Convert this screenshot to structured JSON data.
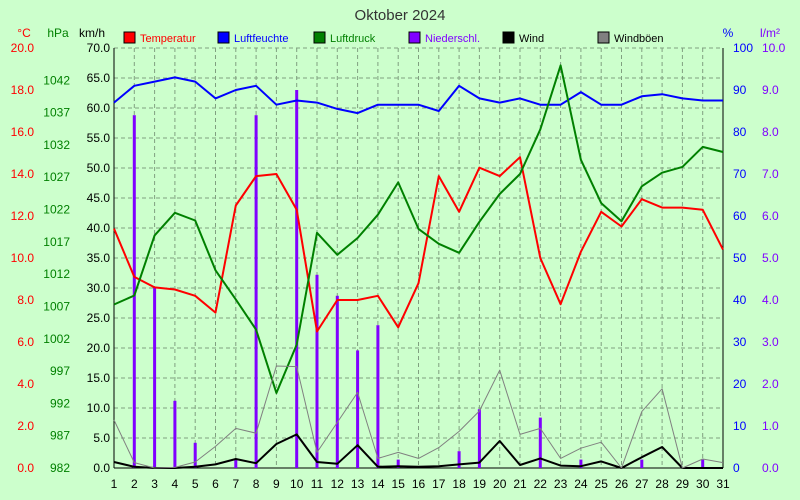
{
  "chart_data": {
    "type": "line",
    "title": "Oktober 2024",
    "x": [
      1,
      2,
      3,
      4,
      5,
      6,
      7,
      8,
      9,
      10,
      11,
      12,
      13,
      14,
      15,
      16,
      17,
      18,
      19,
      20,
      21,
      22,
      23,
      24,
      25,
      26,
      27,
      28,
      29,
      30,
      31
    ],
    "axis_headers": {
      "temp": "°C",
      "pressure": "hPa",
      "wind": "km/h",
      "humidity": "%",
      "rain": "l/m²"
    },
    "axes": {
      "temp": {
        "min": 0,
        "max": 20,
        "ticks": [
          "0.0",
          "2.0",
          "4.0",
          "6.0",
          "8.0",
          "10.0",
          "12.0",
          "14.0",
          "16.0",
          "18.0",
          "20.0"
        ],
        "color": "#ff0000"
      },
      "pressure": {
        "min": 982,
        "max": 1047,
        "ticks": [
          "982",
          "987",
          "992",
          "997",
          "1002",
          "1007",
          "1012",
          "1017",
          "1022",
          "1027",
          "1032",
          "1037",
          "1042"
        ],
        "color": "#008000"
      },
      "wind": {
        "min": 0,
        "max": 70,
        "ticks": [
          "0.0",
          "5.0",
          "10.0",
          "15.0",
          "20.0",
          "25.0",
          "30.0",
          "35.0",
          "40.0",
          "45.0",
          "50.0",
          "55.0",
          "60.0",
          "65.0",
          "70.0"
        ],
        "color": "#000000"
      },
      "humidity": {
        "min": 0,
        "max": 100,
        "ticks": [
          "0",
          "10",
          "20",
          "30",
          "40",
          "50",
          "60",
          "70",
          "80",
          "90",
          "100"
        ],
        "color": "#0000ff"
      },
      "rain": {
        "min": 0,
        "max": 10,
        "ticks": [
          "0.0",
          "1.0",
          "2.0",
          "3.0",
          "4.0",
          "5.0",
          "6.0",
          "7.0",
          "8.0",
          "9.0",
          "10.0"
        ],
        "color": "#8000ff"
      }
    },
    "xticks": [
      "1",
      "2",
      "3",
      "4",
      "5",
      "6",
      "7",
      "8",
      "9",
      "10",
      "11",
      "12",
      "13",
      "14",
      "15",
      "16",
      "17",
      "18",
      "19",
      "20",
      "21",
      "22",
      "23",
      "24",
      "25",
      "26",
      "27",
      "28",
      "29",
      "30",
      "31"
    ],
    "legend_position": "top",
    "grid": true,
    "series": [
      {
        "name": "Temperatur",
        "axis": "temp",
        "color": "#ff0000",
        "kind": "line",
        "values": [
          11.4,
          9.1,
          8.6,
          8.5,
          8.2,
          7.4,
          12.5,
          13.9,
          14.0,
          12.3,
          6.5,
          8.0,
          8.0,
          8.2,
          6.7,
          8.8,
          13.9,
          12.2,
          14.3,
          13.9,
          14.8,
          10.0,
          7.8,
          10.3,
          12.2,
          11.5,
          12.8,
          12.4,
          12.4,
          12.3,
          10.4
        ]
      },
      {
        "name": "Luftfeuchte",
        "axis": "humidity",
        "color": "#0000ff",
        "kind": "line",
        "values": [
          87,
          91,
          92,
          93,
          92,
          88,
          90,
          91,
          86.5,
          87.5,
          87,
          85.5,
          84.5,
          86.5,
          86.5,
          86.5,
          85,
          91,
          88,
          87,
          88,
          86.5,
          86.5,
          89.5,
          86.5,
          86.5,
          88.5,
          89,
          88,
          87.5,
          87.5
        ]
      },
      {
        "name": "Luftdruck",
        "axis": "pressure",
        "color": "#008000",
        "kind": "line",
        "values": [
          1007.3,
          1008.7,
          1018.0,
          1021.5,
          1020.3,
          1012.6,
          1008.1,
          1003.4,
          993.6,
          1001.1,
          1018.4,
          1015.0,
          1017.6,
          1021.2,
          1026.2,
          1019.0,
          1016.7,
          1015.3,
          1020.1,
          1024.4,
          1027.5,
          1034.4,
          1044.3,
          1029.7,
          1023.0,
          1020.2,
          1025.6,
          1027.7,
          1028.6,
          1031.7,
          1030.9
        ]
      },
      {
        "name": "Niederschl.",
        "axis": "rain",
        "color": "#8000ff",
        "kind": "bar",
        "values": [
          0.0,
          8.4,
          4.3,
          1.6,
          0.6,
          0.0,
          0.2,
          8.4,
          0.0,
          9.0,
          4.6,
          4.1,
          2.8,
          3.4,
          0.2,
          0.0,
          0.0,
          0.4,
          1.4,
          0.0,
          0.0,
          1.2,
          0.0,
          0.2,
          0.0,
          0.0,
          0.2,
          0.0,
          0.0,
          0.2,
          0.0
        ]
      },
      {
        "name": "Wind",
        "axis": "wind",
        "color": "#000000",
        "kind": "line",
        "values": [
          1.0,
          0.2,
          0.0,
          0.0,
          0.2,
          0.6,
          1.5,
          0.8,
          4.0,
          5.6,
          1.0,
          0.7,
          3.8,
          0.2,
          0.3,
          0.2,
          0.3,
          0.6,
          0.9,
          4.5,
          0.5,
          1.6,
          0.4,
          0.3,
          1.1,
          0.0,
          1.8,
          3.5,
          0.0,
          0.0,
          0.0
        ]
      },
      {
        "name": "Windböen",
        "axis": "wind",
        "color": "#808080",
        "kind": "line",
        "values": [
          8.0,
          0.9,
          0.0,
          0.1,
          1.0,
          3.6,
          6.6,
          5.8,
          17.0,
          16.9,
          2.6,
          7.6,
          12.6,
          1.6,
          2.6,
          1.6,
          3.4,
          6.1,
          9.5,
          16.3,
          5.6,
          6.6,
          1.6,
          3.3,
          4.3,
          0.0,
          9.4,
          13.2,
          0.0,
          1.5,
          0.9
        ]
      }
    ]
  }
}
